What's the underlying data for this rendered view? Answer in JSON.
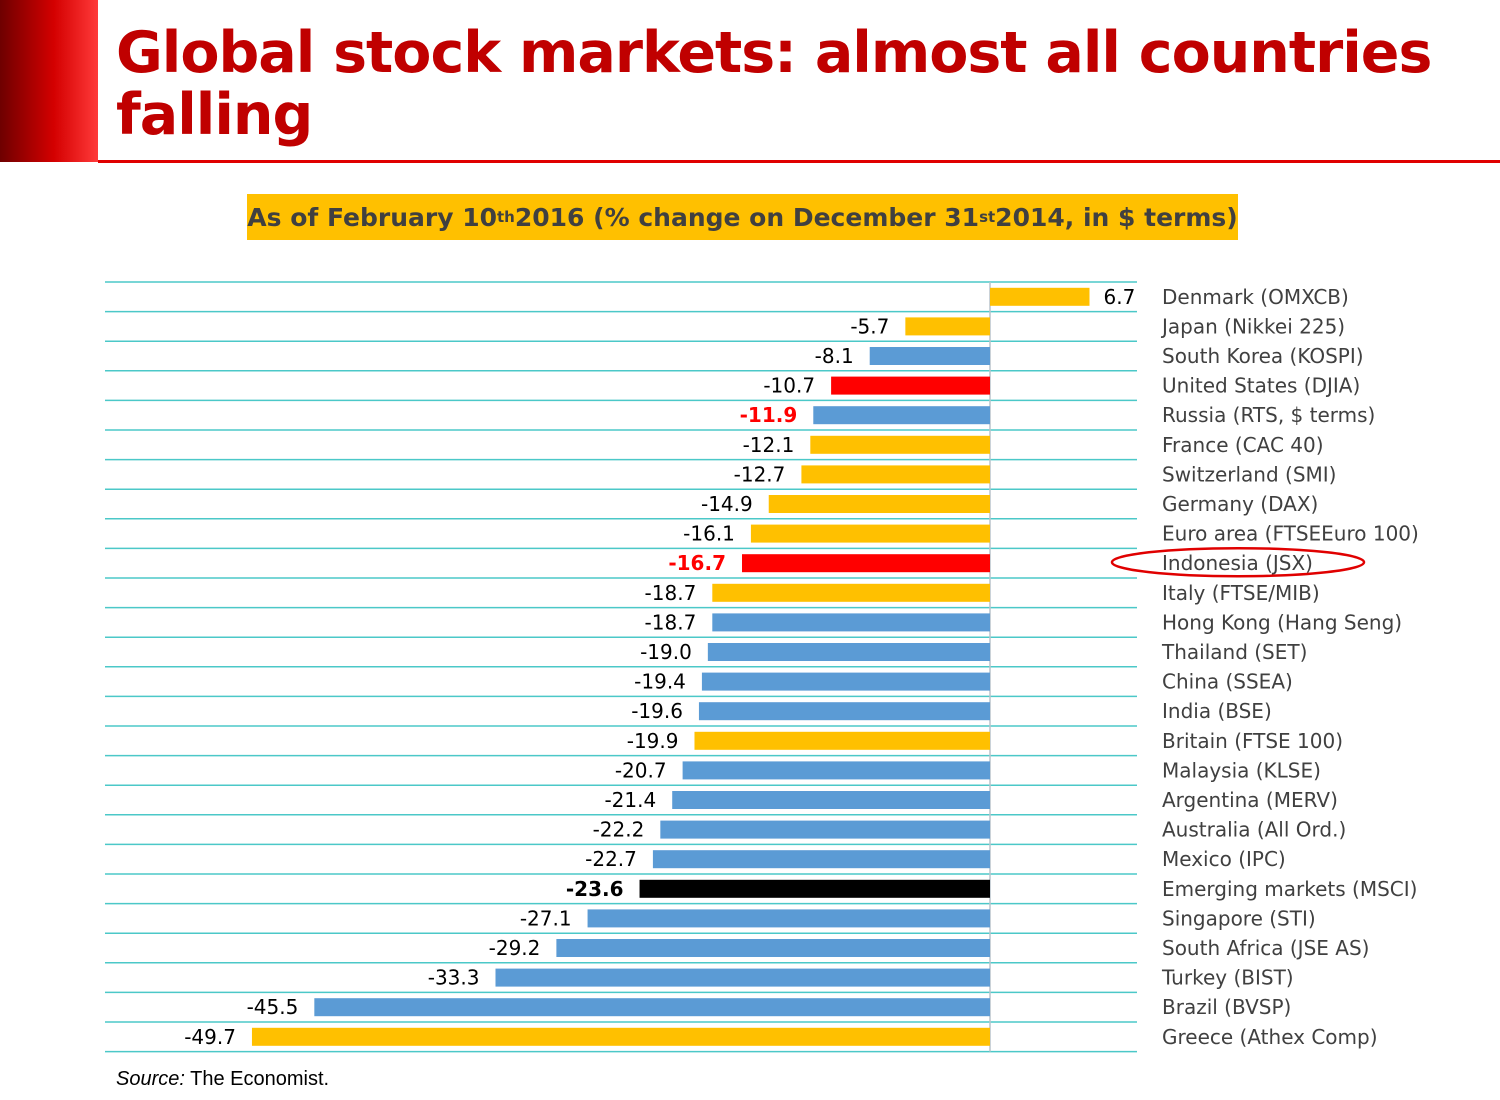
{
  "title": "Global stock markets: almost all countries falling",
  "subtitle": {
    "part1": "As of February 10",
    "sup1": "th",
    "part2": " 2016 (% change on December 31",
    "sup2": "st",
    "part3": " 2014, in $ terms)"
  },
  "source": {
    "label": "Source:",
    "text": " The Economist."
  },
  "colors": {
    "title_red": "#c00000",
    "subtitle_background": "#ffc000",
    "developed_bar": "#ffc000",
    "emerging_bar": "#5b9bd5",
    "highlight_bar": "#ff0000",
    "aggregate_bar": "#000000",
    "gridline": "#4bc8c8",
    "annotation_ellipse": "#e00000"
  },
  "chart_data": {
    "type": "bar",
    "orientation": "horizontal",
    "xlim": [
      -50,
      7
    ],
    "grid": true,
    "legend": "none",
    "categories": [
      "Denmark (OMXCB)",
      "Japan (Nikkei 225)",
      "South Korea (KOSPI)",
      "United States (DJIA)",
      "Russia (RTS, $ terms)",
      "France (CAC 40)",
      "Switzerland (SMI)",
      "Germany (DAX)",
      "Euro area (FTSEEuro 100)",
      "Indonesia (JSX)",
      "Italy (FTSE/MIB)",
      "Hong Kong (Hang Seng)",
      "Thailand (SET)",
      "China (SSEA)",
      "India (BSE)",
      "Britain (FTSE 100)",
      "Malaysia (KLSE)",
      "Argentina (MERV)",
      "Australia (All Ord.)",
      "Mexico (IPC)",
      "Emerging markets (MSCI)",
      "Singapore (STI)",
      "South Africa (JSE AS)",
      "Turkey (BIST)",
      "Brazil (BVSP)",
      "Greece (Athex Comp)"
    ],
    "values": [
      6.7,
      -5.7,
      -8.1,
      -10.7,
      -11.9,
      -12.1,
      -12.7,
      -14.9,
      -16.1,
      -16.7,
      -18.7,
      -18.7,
      -19.0,
      -19.4,
      -19.6,
      -19.9,
      -20.7,
      -21.4,
      -22.2,
      -22.7,
      -23.6,
      -27.1,
      -29.2,
      -33.3,
      -45.5,
      -49.7
    ],
    "value_labels": [
      "6.7",
      "-5.7",
      "-8.1",
      "-10.7",
      "-11.9",
      "-12.1",
      "-12.7",
      "-14.9",
      "-16.1",
      "-16.7",
      "-18.7",
      "-18.7",
      "-19.0",
      "-19.4",
      "-19.6",
      "-19.9",
      "-20.7",
      "-21.4",
      "-22.2",
      "-22.7",
      "-23.6",
      "-27.1",
      "-29.2",
      "-33.3",
      "-45.5",
      "-49.7"
    ],
    "bar_colors": [
      "#ffc000",
      "#ffc000",
      "#5b9bd5",
      "#ff0000",
      "#5b9bd5",
      "#ffc000",
      "#ffc000",
      "#ffc000",
      "#ffc000",
      "#ff0000",
      "#ffc000",
      "#5b9bd5",
      "#5b9bd5",
      "#5b9bd5",
      "#5b9bd5",
      "#ffc000",
      "#5b9bd5",
      "#5b9bd5",
      "#5b9bd5",
      "#5b9bd5",
      "#000000",
      "#5b9bd5",
      "#5b9bd5",
      "#5b9bd5",
      "#5b9bd5",
      "#ffc000"
    ],
    "label_styles": [
      "normal",
      "normal",
      "normal",
      "normal",
      "red-bold",
      "normal",
      "normal",
      "normal",
      "normal",
      "red-bold",
      "normal",
      "normal",
      "normal",
      "normal",
      "normal",
      "normal",
      "normal",
      "normal",
      "normal",
      "normal",
      "black-bold",
      "normal",
      "normal",
      "normal",
      "normal",
      "normal"
    ],
    "annotations": [
      {
        "type": "ellipse",
        "target": "Indonesia (JSX)"
      }
    ]
  }
}
